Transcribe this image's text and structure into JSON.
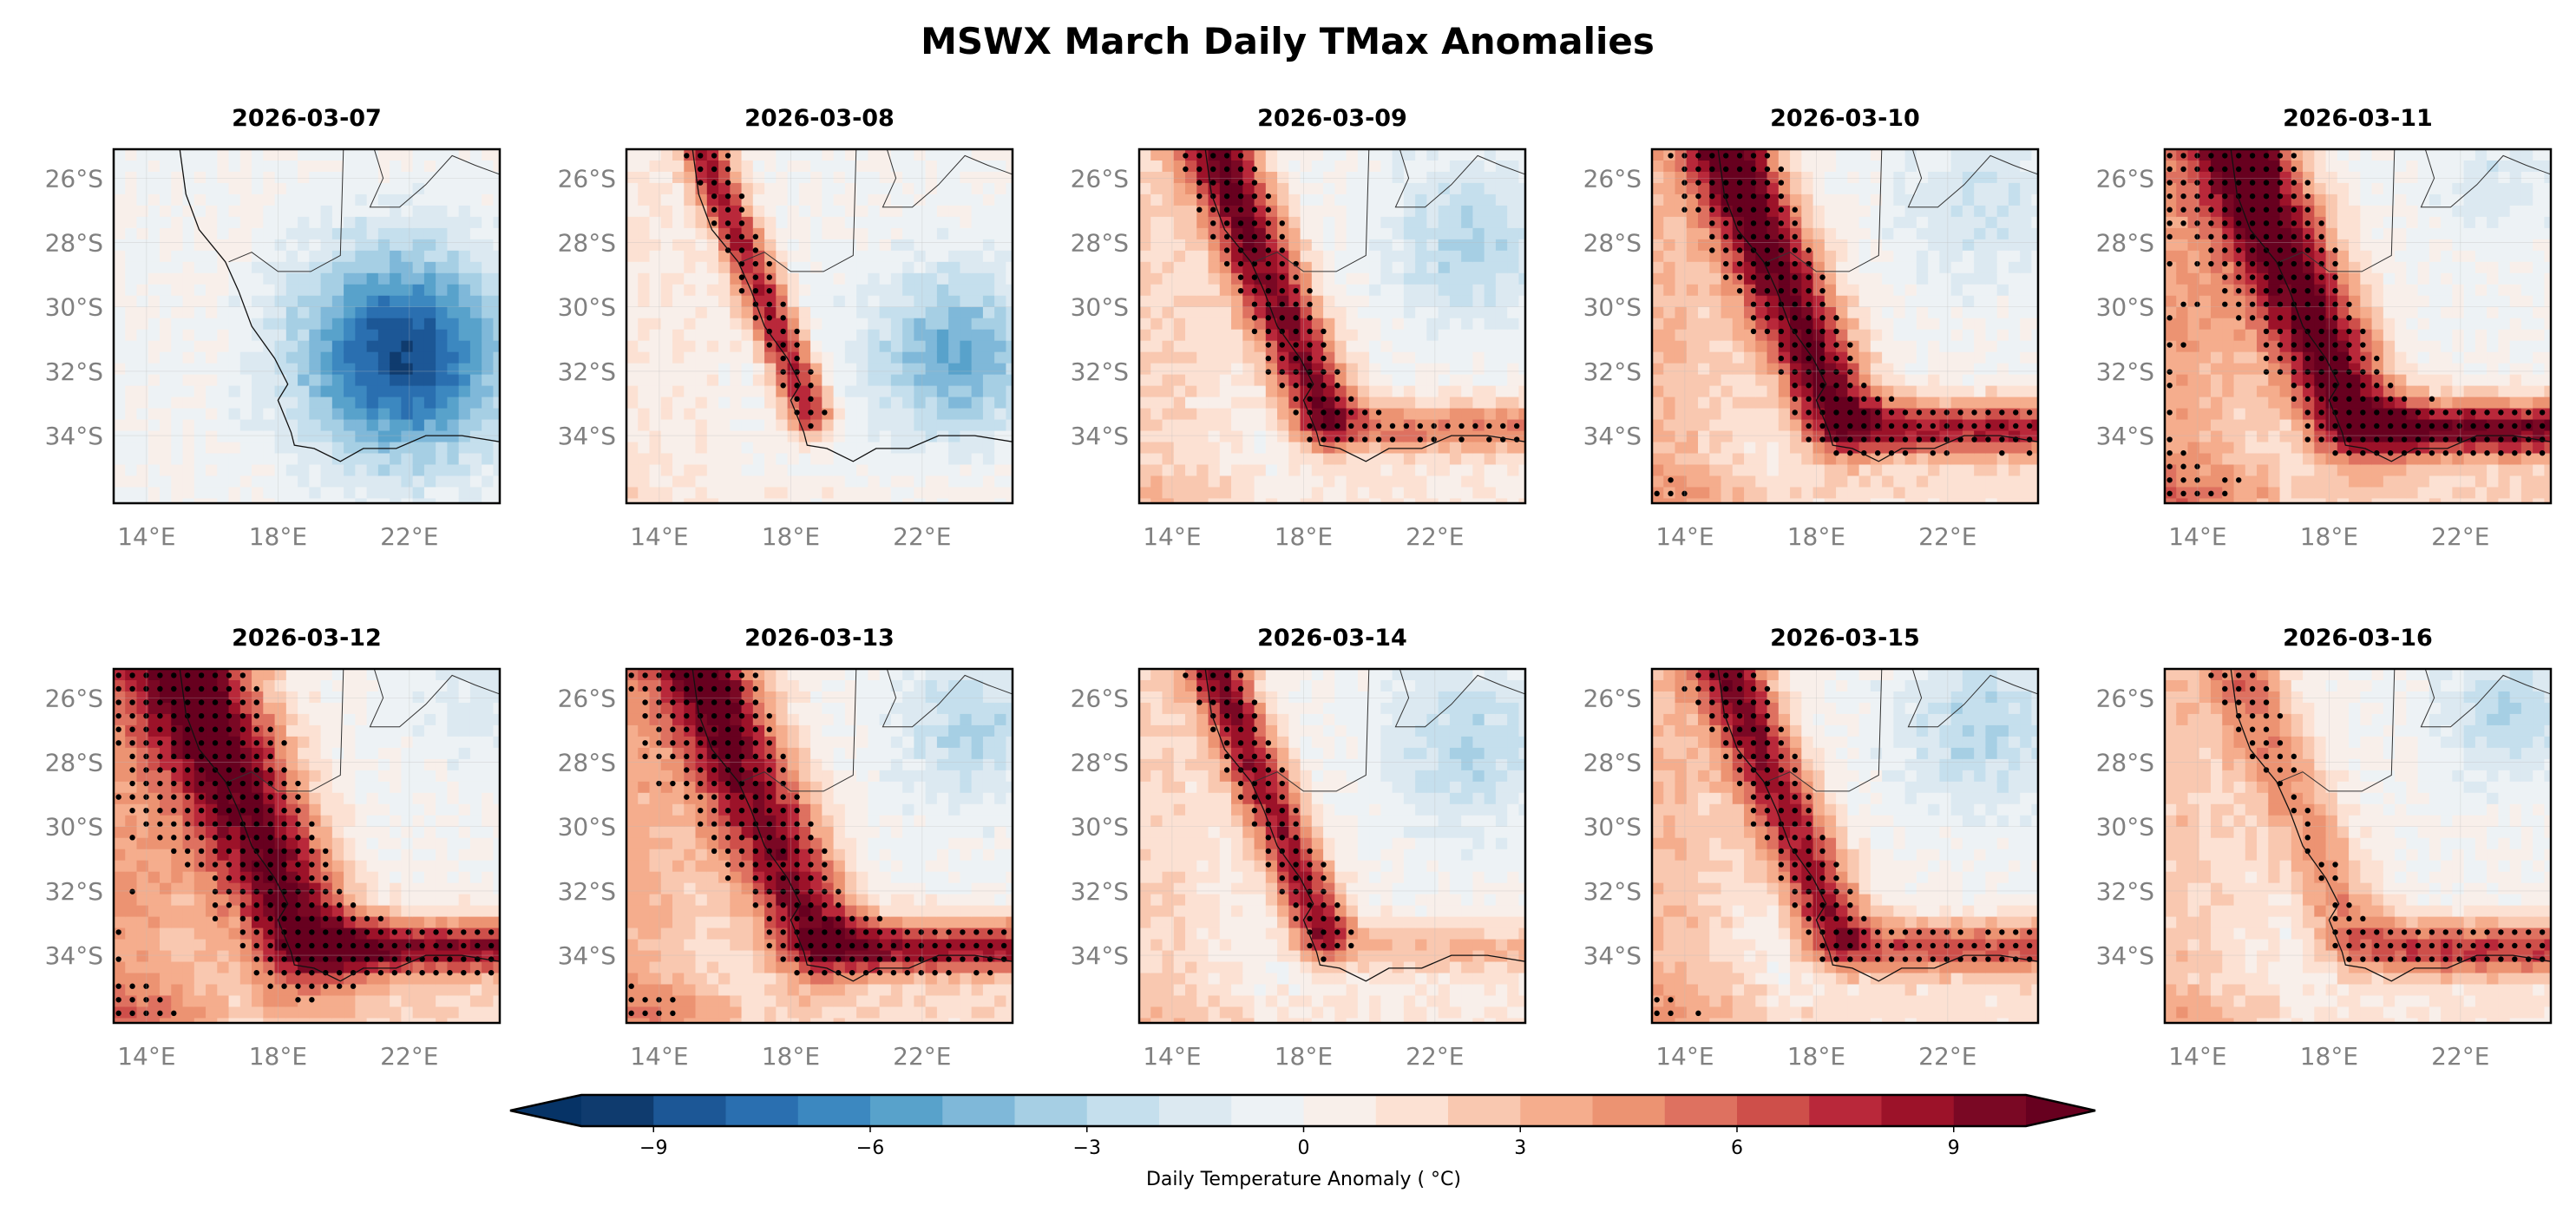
{
  "chart_data": {
    "type": "heatmap",
    "title": "MSWX March Daily TMax Anomalies",
    "panels": [
      {
        "title": "2026-03-07"
      },
      {
        "title": "2026-03-08"
      },
      {
        "title": "2026-03-09"
      },
      {
        "title": "2026-03-10"
      },
      {
        "title": "2026-03-11"
      },
      {
        "title": "2026-03-12"
      },
      {
        "title": "2026-03-13"
      },
      {
        "title": "2026-03-14"
      },
      {
        "title": "2026-03-15"
      },
      {
        "title": "2026-03-16"
      }
    ],
    "lon_ticks": [
      "14°E",
      "18°E",
      "22°E"
    ],
    "lon_tick_values": [
      14,
      18,
      22
    ],
    "lat_ticks": [
      "26°S",
      "28°S",
      "30°S",
      "32°S",
      "34°S"
    ],
    "lat_tick_values": [
      -26,
      -28,
      -30,
      -32,
      -34
    ],
    "lon_range": [
      13,
      24.75
    ],
    "lat_range": [
      -36.1,
      -25.1
    ],
    "stippling": true,
    "colorbar": {
      "label": "Daily Temperature Anomaly ( $^\\circ$C)",
      "label_text": "Daily Temperature Anomaly ( °C)",
      "ticks": [
        "−9",
        "−6",
        "−3",
        "0",
        "3",
        "6",
        "9"
      ],
      "tick_values": [
        -9,
        -6,
        -3,
        0,
        3,
        6,
        9
      ],
      "levels": [
        -10,
        10
      ],
      "step": 1,
      "extend": "both",
      "orientation": "horizontal",
      "placement": "bottom",
      "colormap": "RdBu_r",
      "colors": [
        "#0f3b6e",
        "#1c5796",
        "#2a6fb0",
        "#3c88c0",
        "#58a2cb",
        "#7fb8d9",
        "#a6cfe4",
        "#c5dfed",
        "#dce9f1",
        "#edf2f5",
        "#f8efea",
        "#fce1d3",
        "#f9c8b0",
        "#f5ad8d",
        "#ec9372",
        "#de7160",
        "#ce4f4a",
        "#b9283a",
        "#9c1229",
        "#7a0824"
      ],
      "under_color": "#063366",
      "over_color": "#67001f"
    }
  }
}
